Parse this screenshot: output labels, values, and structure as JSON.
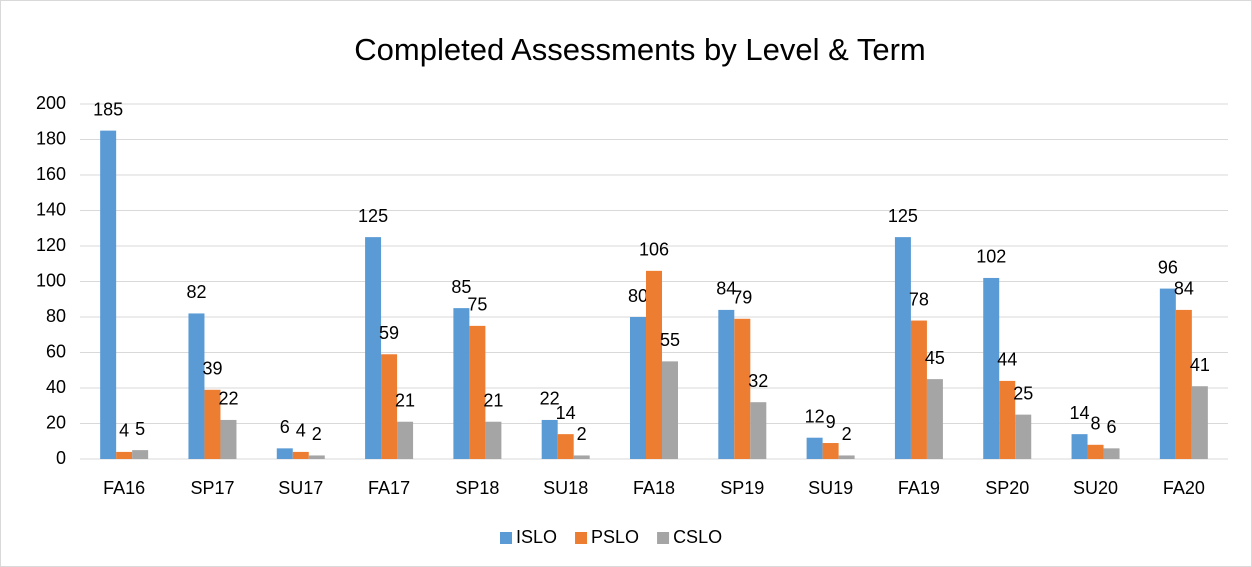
{
  "chart_data": {
    "type": "bar",
    "title": "Completed Assessments by Level & Term",
    "categories": [
      "FA16",
      "SP17",
      "SU17",
      "FA17",
      "SP18",
      "SU18",
      "FA18",
      "SP19",
      "SU19",
      "FA19",
      "SP20",
      "SU20",
      "FA20"
    ],
    "series": [
      {
        "name": "ISLO",
        "color": "#5b9bd5",
        "values": [
          185,
          82,
          6,
          125,
          85,
          22,
          80,
          84,
          12,
          125,
          102,
          14,
          96
        ]
      },
      {
        "name": "PSLO",
        "color": "#ed7d31",
        "values": [
          4,
          39,
          4,
          59,
          75,
          14,
          106,
          79,
          9,
          78,
          44,
          8,
          84
        ]
      },
      {
        "name": "CSLO",
        "color": "#a5a5a5",
        "values": [
          5,
          22,
          2,
          21,
          21,
          2,
          55,
          32,
          2,
          45,
          25,
          6,
          41
        ]
      }
    ],
    "ylim": [
      0,
      200
    ],
    "yticks": [
      0,
      20,
      40,
      60,
      80,
      100,
      120,
      140,
      160,
      180,
      200
    ],
    "grid": true,
    "legend": "bottom"
  }
}
